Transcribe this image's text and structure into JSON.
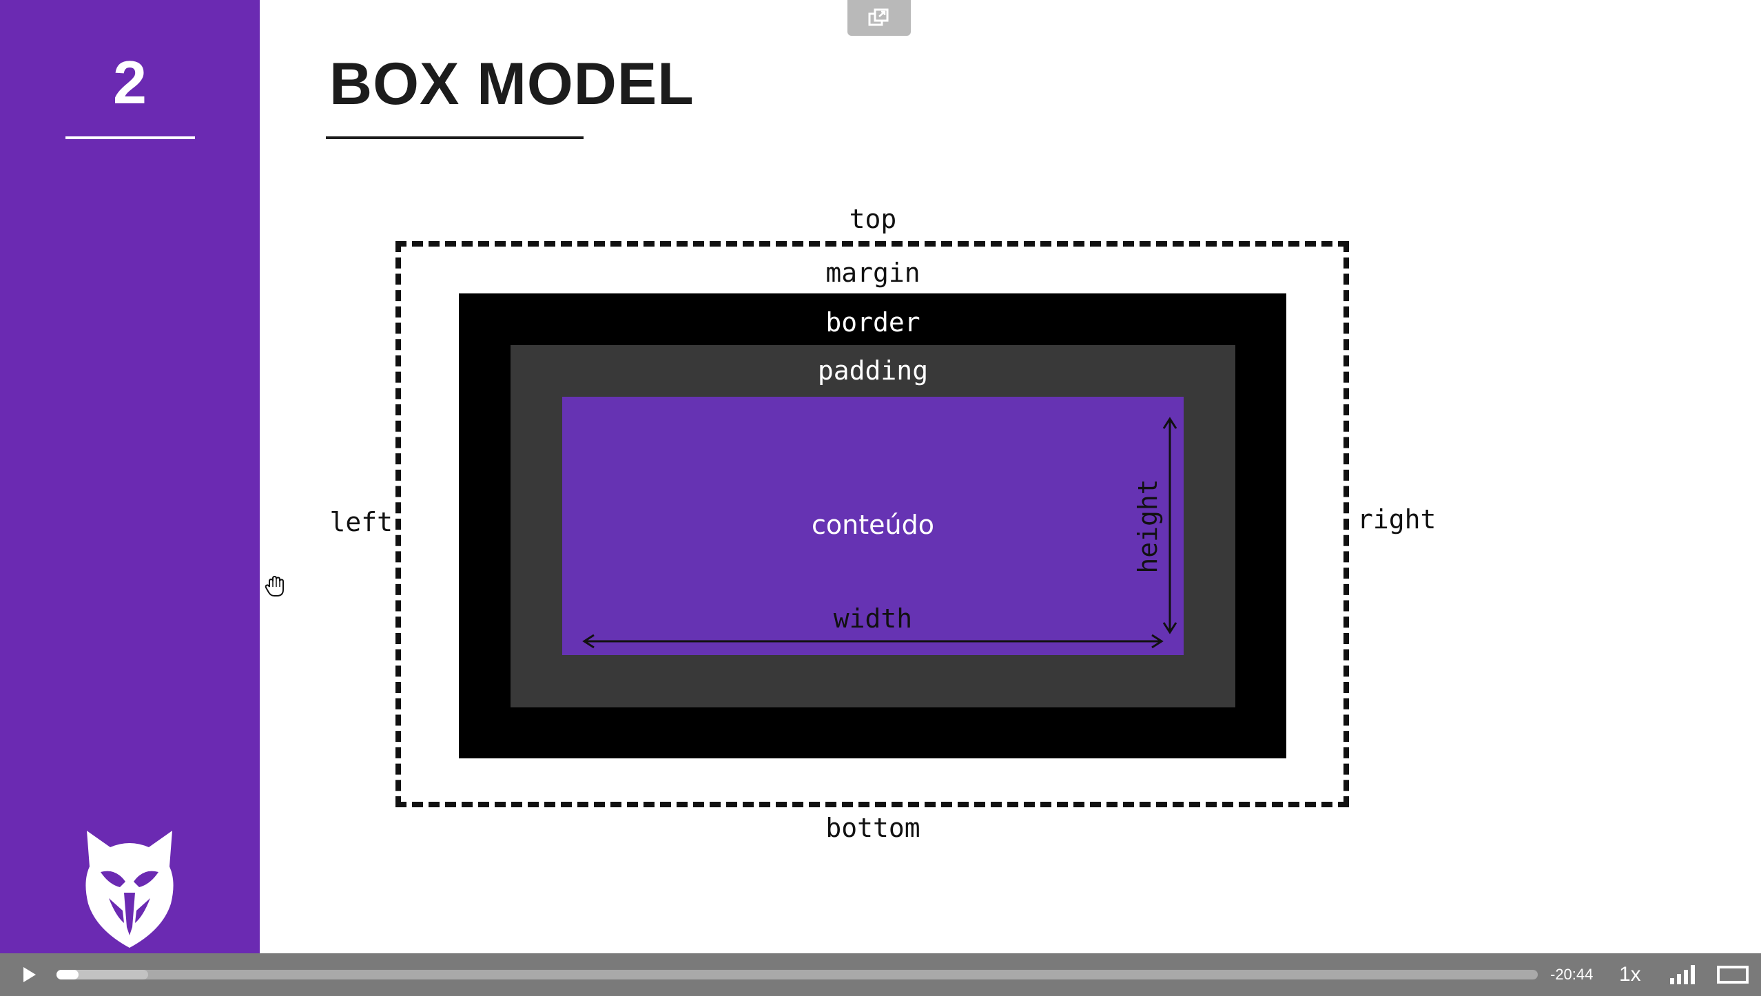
{
  "slide": {
    "number": "2",
    "title": "BOX MODEL"
  },
  "diagram": {
    "top": "top",
    "margin": "margin",
    "border": "border",
    "padding": "padding",
    "content": "conteúdo",
    "width": "width",
    "height": "height",
    "left": "left",
    "right": "right",
    "bottom": "bottom"
  },
  "player": {
    "time_remaining": "-20:44",
    "speed": "1x",
    "progress_played": 0.015,
    "progress_buffered": 0.062
  },
  "colors": {
    "sidebar": "#6b2ab2",
    "content_box": "#6633b3",
    "padding_box": "#393939",
    "border_box": "#000000",
    "controls_bar": "#7a7a7a"
  },
  "icons": {
    "logo": "wolf-logo-icon",
    "cursor": "hand-cursor-icon",
    "popout": "popout-icon",
    "play": "play-icon",
    "quality": "signal-bars-icon",
    "theater": "theater-mode-icon"
  }
}
